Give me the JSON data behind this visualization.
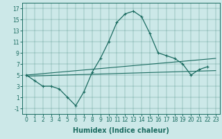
{
  "title": "",
  "xlabel": "Humidex (Indice chaleur)",
  "background_color": "#cce8e8",
  "line_color": "#1a6b60",
  "x_data": [
    0,
    1,
    2,
    3,
    4,
    5,
    6,
    7,
    8,
    9,
    10,
    11,
    12,
    13,
    14,
    15,
    16,
    17,
    18,
    19,
    20,
    21,
    22,
    23
  ],
  "main_line": [
    5,
    4,
    3,
    3,
    2.5,
    1,
    -0.5,
    2,
    5.5,
    8,
    11,
    14.5,
    16,
    16.5,
    15.5,
    12.5,
    9,
    8.5,
    8,
    7,
    5,
    6,
    6.5,
    null
  ],
  "upper_line_x": [
    0,
    23
  ],
  "upper_line_y": [
    5.0,
    8.0
  ],
  "lower_line_x": [
    0,
    23
  ],
  "lower_line_y": [
    4.8,
    5.8
  ],
  "xlim": [
    -0.5,
    23.5
  ],
  "ylim": [
    -2,
    18
  ],
  "yticks": [
    -1,
    1,
    3,
    5,
    7,
    9,
    11,
    13,
    15,
    17
  ],
  "xticks": [
    0,
    1,
    2,
    3,
    4,
    5,
    6,
    7,
    8,
    9,
    10,
    11,
    12,
    13,
    14,
    15,
    16,
    17,
    18,
    19,
    20,
    21,
    22,
    23
  ],
  "tick_fontsize": 5.5,
  "xlabel_fontsize": 7
}
